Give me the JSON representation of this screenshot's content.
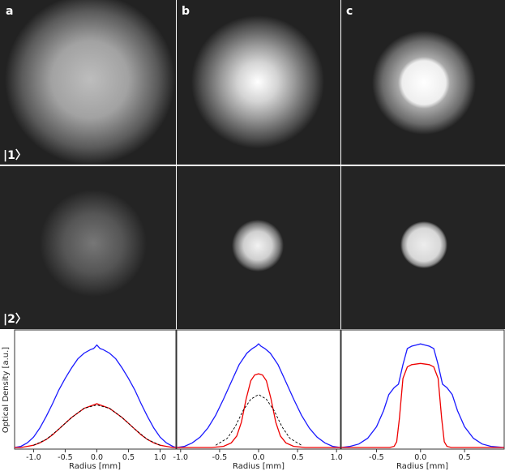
{
  "figure": {
    "panel_letters": [
      "a",
      "b",
      "c"
    ],
    "row_labels": [
      "|1〉",
      "|2〉"
    ]
  },
  "chart_data": [
    {
      "type": "line",
      "panel": "a",
      "xlabel": "Radius [mm]",
      "ylabel": "Optical Density [a.u.]",
      "xlim": [
        -1.3,
        1.25
      ],
      "xticks": [
        -1.0,
        -0.5,
        0.0,
        0.5,
        1.0
      ],
      "xtick_labels": [
        "-1.0",
        "-0.5",
        "0.0",
        "0.5",
        "1.0"
      ],
      "ylim": [
        0,
        1
      ],
      "grid": false,
      "series": [
        {
          "color": "#1a1aff",
          "style": "solid",
          "x": [
            -1.3,
            -1.2,
            -1.1,
            -1.0,
            -0.9,
            -0.8,
            -0.7,
            -0.6,
            -0.5,
            -0.4,
            -0.3,
            -0.2,
            -0.1,
            -0.05,
            0,
            0.05,
            0.1,
            0.2,
            0.3,
            0.4,
            0.5,
            0.6,
            0.7,
            0.8,
            0.9,
            1.0,
            1.1,
            1.2,
            1.25
          ],
          "y": [
            0.0,
            0.01,
            0.04,
            0.09,
            0.17,
            0.27,
            0.38,
            0.5,
            0.6,
            0.69,
            0.77,
            0.82,
            0.85,
            0.86,
            0.89,
            0.86,
            0.85,
            0.82,
            0.77,
            0.69,
            0.6,
            0.5,
            0.38,
            0.27,
            0.17,
            0.09,
            0.04,
            0.01,
            0.0
          ]
        },
        {
          "color": "#ee0000",
          "style": "solid",
          "x": [
            -1.3,
            -1.2,
            -1.1,
            -1.0,
            -0.9,
            -0.8,
            -0.7,
            -0.6,
            -0.5,
            -0.4,
            -0.3,
            -0.2,
            -0.1,
            -0.05,
            0,
            0.05,
            0.1,
            0.2,
            0.3,
            0.4,
            0.5,
            0.6,
            0.7,
            0.8,
            0.9,
            1.0,
            1.1,
            1.2,
            1.25
          ],
          "y": [
            0.0,
            0.0,
            0.01,
            0.02,
            0.04,
            0.07,
            0.11,
            0.16,
            0.21,
            0.26,
            0.3,
            0.34,
            0.36,
            0.37,
            0.38,
            0.37,
            0.36,
            0.34,
            0.3,
            0.26,
            0.21,
            0.16,
            0.11,
            0.07,
            0.04,
            0.02,
            0.01,
            0.0,
            0.0
          ]
        },
        {
          "color": "#000000",
          "style": "dashed",
          "x": [
            -1.0,
            -0.8,
            -0.6,
            -0.4,
            -0.2,
            0,
            0.2,
            0.4,
            0.6,
            0.8,
            1.0
          ],
          "y": [
            0.02,
            0.07,
            0.16,
            0.26,
            0.34,
            0.37,
            0.34,
            0.26,
            0.16,
            0.07,
            0.02
          ]
        }
      ]
    },
    {
      "type": "line",
      "panel": "b",
      "xlabel": "Radius [mm]",
      "xlim": [
        -1.05,
        1.05
      ],
      "xticks": [
        -1.0,
        -0.5,
        0.0,
        0.5,
        1.0
      ],
      "xtick_labels": [
        "-1.0",
        "-0.5",
        "0.0",
        "0.5",
        "1.0"
      ],
      "ylim": [
        0,
        1
      ],
      "grid": false,
      "series": [
        {
          "color": "#1a1aff",
          "style": "solid",
          "x": [
            -1.05,
            -0.95,
            -0.85,
            -0.75,
            -0.65,
            -0.55,
            -0.45,
            -0.35,
            -0.25,
            -0.15,
            -0.08,
            -0.03,
            0,
            0.03,
            0.08,
            0.15,
            0.25,
            0.35,
            0.45,
            0.55,
            0.65,
            0.75,
            0.85,
            0.95,
            1.05
          ],
          "y": [
            0.0,
            0.01,
            0.04,
            0.09,
            0.17,
            0.28,
            0.42,
            0.57,
            0.72,
            0.82,
            0.86,
            0.88,
            0.9,
            0.88,
            0.86,
            0.82,
            0.72,
            0.57,
            0.42,
            0.28,
            0.17,
            0.09,
            0.04,
            0.01,
            0.0
          ]
        },
        {
          "color": "#ee0000",
          "style": "solid",
          "x": [
            -1.05,
            -0.6,
            -0.45,
            -0.35,
            -0.28,
            -0.22,
            -0.16,
            -0.1,
            -0.05,
            0,
            0.05,
            0.1,
            0.16,
            0.22,
            0.28,
            0.35,
            0.45,
            0.6,
            1.05
          ],
          "y": [
            0.0,
            0.0,
            0.01,
            0.04,
            0.1,
            0.22,
            0.42,
            0.58,
            0.63,
            0.64,
            0.63,
            0.58,
            0.42,
            0.22,
            0.1,
            0.04,
            0.01,
            0.0,
            0.0
          ]
        },
        {
          "color": "#000000",
          "style": "dashed",
          "x": [
            -0.55,
            -0.4,
            -0.3,
            -0.2,
            -0.1,
            0,
            0.1,
            0.2,
            0.3,
            0.4,
            0.55
          ],
          "y": [
            0.02,
            0.08,
            0.18,
            0.32,
            0.42,
            0.46,
            0.42,
            0.32,
            0.18,
            0.08,
            0.02
          ]
        }
      ]
    },
    {
      "type": "line",
      "panel": "c",
      "xlabel": "Radius [mm]",
      "xlim": [
        -0.9,
        0.95
      ],
      "xticks": [
        -0.5,
        0.0,
        0.5
      ],
      "xtick_labels": [
        "-0.5",
        "0.0",
        "0.5"
      ],
      "ylim": [
        0,
        1
      ],
      "grid": false,
      "series": [
        {
          "color": "#1a1aff",
          "style": "solid",
          "x": [
            -0.9,
            -0.8,
            -0.7,
            -0.6,
            -0.5,
            -0.42,
            -0.36,
            -0.3,
            -0.25,
            -0.2,
            -0.15,
            -0.1,
            -0.05,
            0,
            0.05,
            0.1,
            0.15,
            0.2,
            0.25,
            0.3,
            0.36,
            0.42,
            0.5,
            0.6,
            0.7,
            0.8,
            0.95
          ],
          "y": [
            0.0,
            0.01,
            0.03,
            0.08,
            0.18,
            0.32,
            0.46,
            0.52,
            0.55,
            0.72,
            0.86,
            0.88,
            0.89,
            0.9,
            0.89,
            0.88,
            0.86,
            0.72,
            0.55,
            0.52,
            0.46,
            0.32,
            0.18,
            0.08,
            0.03,
            0.01,
            0.0
          ]
        },
        {
          "color": "#ee0000",
          "style": "solid",
          "x": [
            -0.9,
            -0.35,
            -0.3,
            -0.27,
            -0.24,
            -0.2,
            -0.15,
            -0.1,
            0,
            0.1,
            0.15,
            0.2,
            0.24,
            0.27,
            0.3,
            0.35,
            0.95
          ],
          "y": [
            0.0,
            0.0,
            0.01,
            0.05,
            0.25,
            0.6,
            0.7,
            0.72,
            0.73,
            0.72,
            0.7,
            0.6,
            0.25,
            0.05,
            0.01,
            0.0,
            0.0
          ]
        }
      ]
    }
  ]
}
